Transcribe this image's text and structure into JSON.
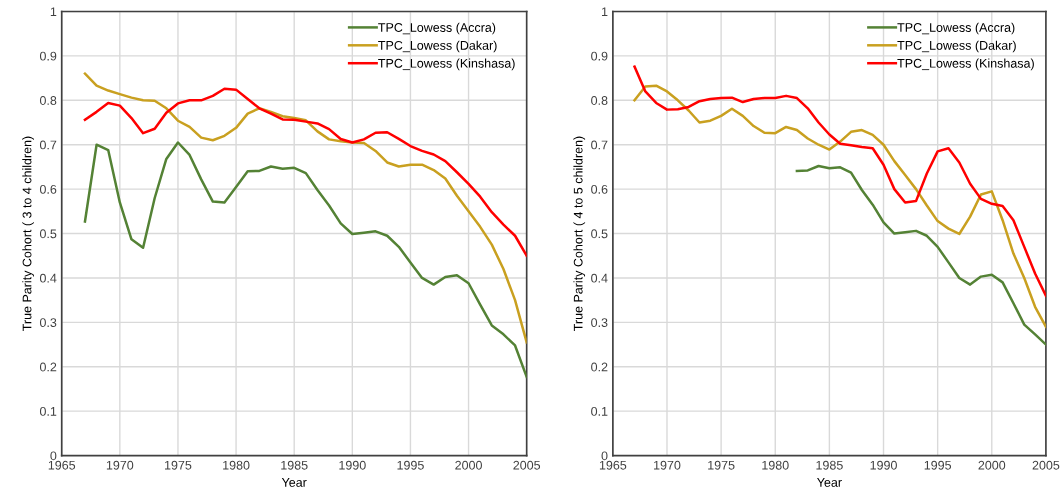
{
  "chart_data": [
    {
      "type": "line",
      "xlabel": "Year",
      "ylabel": "True Parity Cohort ( 3 to 4 children)",
      "x": [
        1967,
        1968,
        1969,
        1970,
        1971,
        1972,
        1973,
        1974,
        1975,
        1976,
        1977,
        1978,
        1979,
        1980,
        1981,
        1982,
        1983,
        1984,
        1985,
        1986,
        1987,
        1988,
        1989,
        1990,
        1991,
        1992,
        1993,
        1994,
        1995,
        1996,
        1997,
        1998,
        1999,
        2000,
        2001,
        2002,
        2003,
        2004,
        2005
      ],
      "xlim": [
        1965,
        2005
      ],
      "xticks": [
        1965,
        1970,
        1975,
        1980,
        1985,
        1990,
        1995,
        2000,
        2005
      ],
      "ylim": [
        0,
        1
      ],
      "yticks": [
        0,
        0.1,
        0.2,
        0.3,
        0.4,
        0.5,
        0.6,
        0.7,
        0.8,
        0.9,
        1
      ],
      "grid": true,
      "legend": "top right",
      "marker": "none",
      "line_style": "solid",
      "series": [
        {
          "name": "TPC_Lowess (Accra)",
          "color": "#548235",
          "values": [
            0.527,
            0.7,
            0.688,
            0.57,
            0.487,
            0.468,
            0.58,
            0.668,
            0.705,
            0.677,
            0.622,
            0.572,
            0.57,
            0.605,
            0.64,
            0.641,
            0.651,
            0.646,
            0.648,
            0.636,
            0.598,
            0.563,
            0.523,
            0.499,
            0.502,
            0.505,
            0.495,
            0.47,
            0.435,
            0.4,
            0.385,
            0.402,
            0.406,
            0.388,
            0.34,
            0.293,
            0.273,
            0.248,
            0.177
          ]
        },
        {
          "name": "TPC_Lowess (Dakar)",
          "color": "#c9a020",
          "values": [
            0.86,
            0.833,
            0.822,
            0.814,
            0.806,
            0.8,
            0.799,
            0.782,
            0.754,
            0.74,
            0.716,
            0.71,
            0.72,
            0.738,
            0.77,
            0.782,
            0.774,
            0.764,
            0.76,
            0.755,
            0.73,
            0.712,
            0.708,
            0.705,
            0.704,
            0.686,
            0.66,
            0.651,
            0.655,
            0.655,
            0.643,
            0.624,
            0.585,
            0.55,
            0.515,
            0.475,
            0.42,
            0.35,
            0.255
          ]
        },
        {
          "name": "TPC_Lowess (Kinshasa)",
          "color": "#ff0000",
          "values": [
            0.756,
            0.774,
            0.794,
            0.788,
            0.76,
            0.726,
            0.736,
            0.772,
            0.793,
            0.8,
            0.8,
            0.81,
            0.826,
            0.824,
            0.803,
            0.782,
            0.77,
            0.757,
            0.756,
            0.752,
            0.748,
            0.735,
            0.713,
            0.705,
            0.712,
            0.727,
            0.728,
            0.713,
            0.697,
            0.686,
            0.678,
            0.663,
            0.638,
            0.612,
            0.583,
            0.548,
            0.52,
            0.495,
            0.45
          ]
        }
      ]
    },
    {
      "type": "line",
      "xlabel": "Year",
      "ylabel": "True Parity Cohort ( 4 to 5 children)",
      "x": [
        1967,
        1968,
        1969,
        1970,
        1971,
        1972,
        1973,
        1974,
        1975,
        1976,
        1977,
        1978,
        1979,
        1980,
        1981,
        1982,
        1983,
        1984,
        1985,
        1986,
        1987,
        1988,
        1989,
        1990,
        1991,
        1992,
        1993,
        1994,
        1995,
        1996,
        1997,
        1998,
        1999,
        2000,
        2001,
        2002,
        2003,
        2004,
        2005
      ],
      "xlim": [
        1965,
        2005
      ],
      "xticks": [
        1965,
        1970,
        1975,
        1980,
        1985,
        1990,
        1995,
        2000,
        2005
      ],
      "ylim": [
        0,
        1
      ],
      "yticks": [
        0,
        0.1,
        0.2,
        0.3,
        0.4,
        0.5,
        0.6,
        0.7,
        0.8,
        0.9,
        1
      ],
      "grid": true,
      "legend": "top right",
      "marker": "none",
      "line_style": "solid",
      "series": [
        {
          "name": "TPC_Lowess (Accra)",
          "color": "#548235",
          "x": [
            1982,
            1983,
            1984,
            1985,
            1986,
            1987,
            1988,
            1989,
            1990,
            1991,
            1992,
            1993,
            1994,
            1995,
            1996,
            1997,
            1998,
            1999,
            2000,
            2001,
            2002,
            2003,
            2004,
            2005
          ],
          "values": [
            0.641,
            0.642,
            0.652,
            0.647,
            0.649,
            0.637,
            0.598,
            0.565,
            0.525,
            0.5,
            0.503,
            0.506,
            0.495,
            0.47,
            0.435,
            0.4,
            0.385,
            0.403,
            0.407,
            0.39,
            0.343,
            0.295,
            0.273,
            0.25
          ]
        },
        {
          "name": "TPC_Lowess (Dakar)",
          "color": "#c9a020",
          "values": [
            0.8,
            0.831,
            0.833,
            0.82,
            0.8,
            0.777,
            0.75,
            0.754,
            0.765,
            0.781,
            0.765,
            0.742,
            0.727,
            0.726,
            0.74,
            0.733,
            0.714,
            0.7,
            0.689,
            0.707,
            0.729,
            0.733,
            0.722,
            0.7,
            0.663,
            0.632,
            0.6,
            0.563,
            0.528,
            0.511,
            0.499,
            0.538,
            0.588,
            0.595,
            0.53,
            0.455,
            0.4,
            0.335,
            0.29
          ]
        },
        {
          "name": "TPC_Lowess (Kinshasa)",
          "color": "#ff0000",
          "values": [
            0.876,
            0.82,
            0.794,
            0.779,
            0.78,
            0.785,
            0.798,
            0.803,
            0.805,
            0.806,
            0.796,
            0.803,
            0.805,
            0.805,
            0.81,
            0.805,
            0.782,
            0.75,
            0.723,
            0.702,
            0.699,
            0.695,
            0.692,
            0.655,
            0.6,
            0.57,
            0.573,
            0.635,
            0.685,
            0.692,
            0.66,
            0.612,
            0.578,
            0.567,
            0.562,
            0.53,
            0.47,
            0.41,
            0.36
          ]
        }
      ]
    }
  ]
}
